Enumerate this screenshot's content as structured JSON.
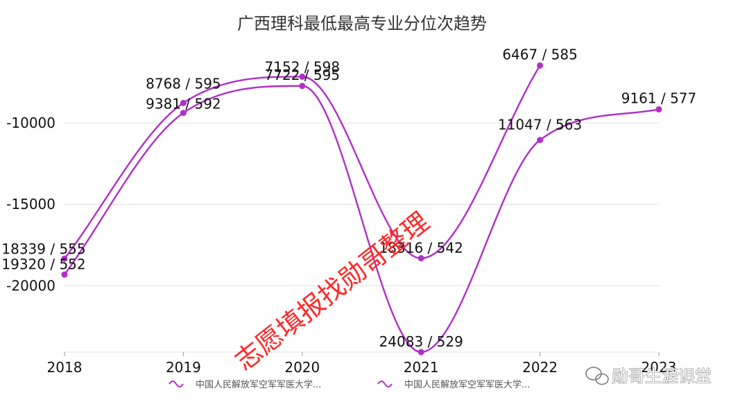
{
  "chart_data": {
    "type": "line",
    "title": "广西理科最低最高专业分位次趋势",
    "categories": [
      "2018",
      "2019",
      "2020",
      "2021",
      "2022",
      "2023"
    ],
    "y_ticks": [
      "-10000",
      "-15000",
      "-20000"
    ],
    "ylim": [
      -24083,
      -5000
    ],
    "grid": true,
    "legend_position": "bottom",
    "series": [
      {
        "name": "中国人民解放军空军军医大学...",
        "values": [
          -18339,
          -8768,
          -7152,
          -18316,
          -6467,
          null
        ],
        "labels": [
          "18339 / 555",
          "8768 / 595",
          "7152 / 598",
          "18316 / 542",
          "6467 / 585",
          null
        ]
      },
      {
        "name": "中国人民解放军空军军医大学...",
        "values": [
          -19320,
          -9381,
          -7722,
          -24083,
          -11047,
          -9161
        ],
        "labels": [
          "19320 / 552",
          "9381 / 592",
          "7722 / 595",
          "24083 / 529",
          "11047 / 563",
          "9161 / 577"
        ]
      }
    ],
    "colors": {
      "line": "#b02fc7",
      "grid": "#e0e0e0",
      "axis": "#999999"
    }
  },
  "watermark": "志愿填报找勋哥整理",
  "wechat_tag": "勋哥生涯课堂"
}
